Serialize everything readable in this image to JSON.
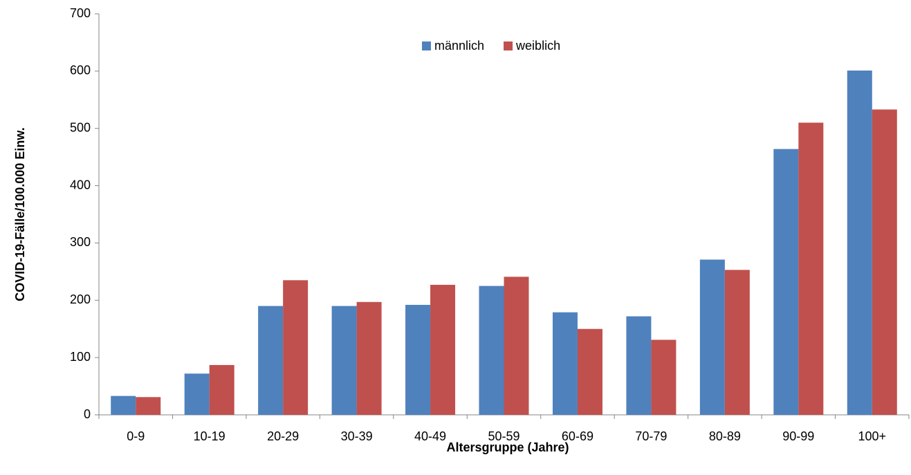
{
  "chart_data": {
    "type": "bar",
    "x_label": "Altersgruppe (Jahre)",
    "y_label": "COVID-19-Fälle/100.000 Einw.",
    "categories": [
      "0-9",
      "10-19",
      "20-29",
      "30-39",
      "40-49",
      "50-59",
      "60-69",
      "70-79",
      "80-89",
      "90-99",
      "100+"
    ],
    "series": [
      {
        "name": "männlich",
        "color": "#4f81bd",
        "values": [
          33,
          72,
          190,
          190,
          192,
          225,
          179,
          172,
          271,
          464,
          601
        ]
      },
      {
        "name": "weiblich",
        "color": "#c0504d",
        "values": [
          31,
          87,
          235,
          197,
          227,
          241,
          150,
          131,
          253,
          510,
          533
        ]
      }
    ],
    "ylim": [
      0,
      700
    ],
    "yticks": [
      0,
      100,
      200,
      300,
      400,
      500,
      600,
      700
    ],
    "grid": false,
    "legend": "top"
  }
}
